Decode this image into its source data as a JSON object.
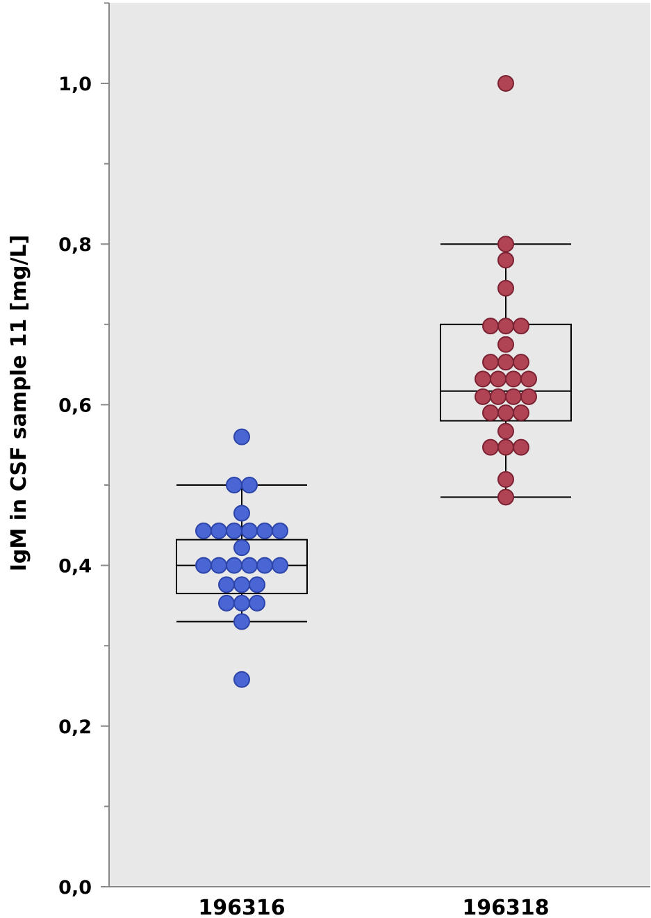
{
  "chart_data": {
    "type": "box",
    "ylabel": "IgM in CSF sample 11 [mg/L]",
    "ylim": [
      0,
      1.1
    ],
    "y_ticks": [
      "0,0",
      "0,2",
      "0,4",
      "0,6",
      "0,8",
      "1,0"
    ],
    "grid": false,
    "categories": [
      "196316",
      "196318"
    ],
    "series": [
      {
        "color": "#4a66d4",
        "stroke": "#2c44a8",
        "box": {
          "q1": 0.365,
          "median": 0.4,
          "q3": 0.432,
          "whisker_low": 0.33,
          "whisker_high": 0.5
        },
        "points": [
          0.56,
          0.5,
          0.5,
          0.465,
          0.443,
          0.443,
          0.443,
          0.443,
          0.443,
          0.443,
          0.422,
          0.4,
          0.4,
          0.4,
          0.4,
          0.4,
          0.4,
          0.376,
          0.376,
          0.376,
          0.353,
          0.353,
          0.353,
          0.33,
          0.258
        ]
      },
      {
        "color": "#b04455",
        "stroke": "#7a2232",
        "box": {
          "q1": 0.58,
          "median": 0.617,
          "q3": 0.7,
          "whisker_low": 0.485,
          "whisker_high": 0.8
        },
        "points": [
          1.0,
          0.8,
          0.78,
          0.745,
          0.698,
          0.698,
          0.698,
          0.675,
          0.653,
          0.653,
          0.653,
          0.632,
          0.632,
          0.632,
          0.632,
          0.61,
          0.61,
          0.61,
          0.61,
          0.59,
          0.59,
          0.59,
          0.567,
          0.547,
          0.547,
          0.547,
          0.507,
          0.485
        ]
      }
    ]
  }
}
